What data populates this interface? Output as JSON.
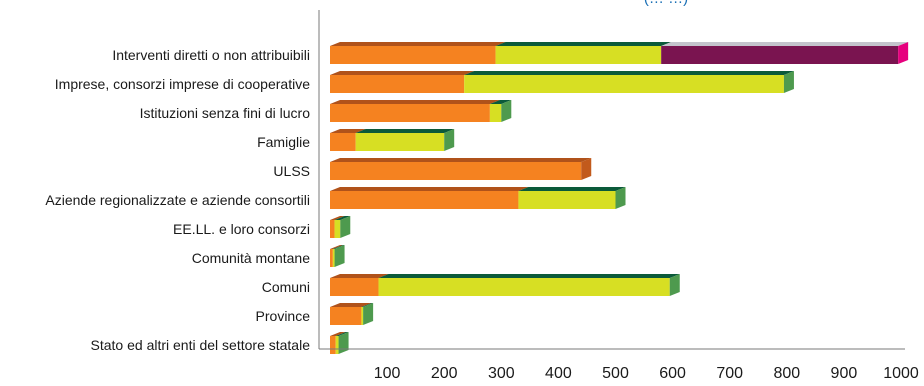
{
  "chart_data": {
    "type": "bar",
    "orientation": "horizontal",
    "stacked": true,
    "three_d": true,
    "title": "",
    "partial_title_visible": "(… …)",
    "xlabel": "",
    "ylabel": "",
    "xlim": [
      0,
      1000
    ],
    "xticks": [
      "100",
      "200",
      "300",
      "400",
      "500",
      "600",
      "700",
      "800",
      "900",
      "1000"
    ],
    "grid": false,
    "legend": "none",
    "categories": [
      "Interventi diretti o non attribuibili",
      "Imprese, consorzi imprese di cooperative",
      "Istituzioni senza fini di lucro",
      "Famiglie",
      "ULSS",
      "Aziende regionalizzate e aziende consortili",
      "EE.LL. e loro consorzi",
      "Comunità montane",
      "Comuni",
      "Province",
      "Stato ed altri enti del settore statale"
    ],
    "series": [
      {
        "color": "#f58220",
        "top_color": "#b0521a",
        "values": [
          290,
          235,
          280,
          45,
          440,
          330,
          8,
          5,
          85,
          55,
          10
        ]
      },
      {
        "color": "#d7df23",
        "top_color": "#0b5a3a",
        "values": [
          290,
          560,
          20,
          155,
          0,
          170,
          10,
          3,
          510,
          3,
          5
        ]
      },
      {
        "color": "#7a1450",
        "top_color": "#c4c4cc",
        "values": [
          415,
          0,
          0,
          0,
          0,
          0,
          0,
          0,
          0,
          0,
          0
        ]
      }
    ],
    "end_cap_colors": [
      "#e6007e",
      "#4e9a4e",
      "#4e9a4e",
      "#4e9a4e",
      "#c25a1c",
      "#4e9a4e",
      "#4e9a4e",
      "#4e9a4e",
      "#4e9a4e",
      "#4e9a4e",
      "#4e9a4e"
    ]
  }
}
